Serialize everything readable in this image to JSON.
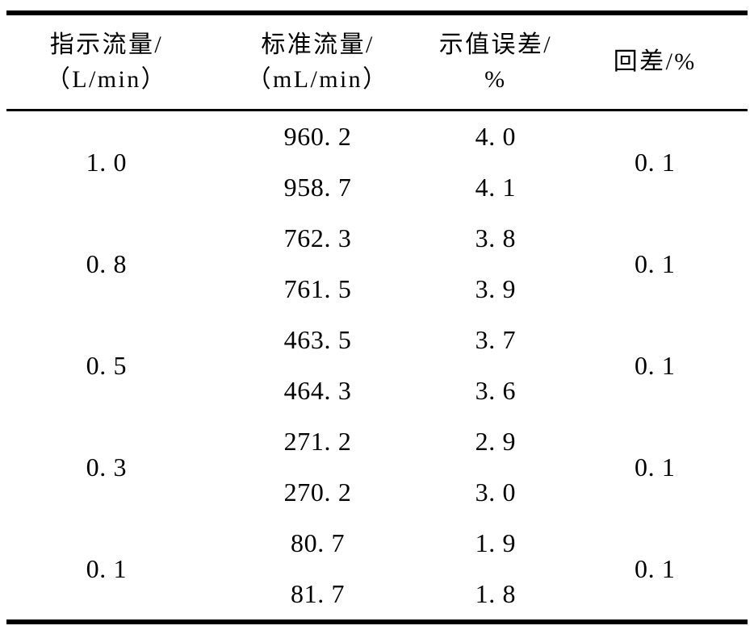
{
  "page": {
    "background": "#ffffff",
    "text_color": "#000000"
  },
  "table": {
    "columns": [
      {
        "title": "指示流量/",
        "unit": "（L/min）"
      },
      {
        "title": "标准流量/",
        "unit": "（mL/min）"
      },
      {
        "title": "示值误差/",
        "unit": "%"
      },
      {
        "title": "回差/%",
        "unit": ""
      }
    ],
    "groups": [
      {
        "indicated": "1. 0",
        "hysteresis": "0. 1",
        "readings": [
          {
            "standard": "960. 2",
            "error": "4. 0"
          },
          {
            "standard": "958. 7",
            "error": "4. 1"
          }
        ]
      },
      {
        "indicated": "0. 8",
        "hysteresis": "0. 1",
        "readings": [
          {
            "standard": "762. 3",
            "error": "3. 8"
          },
          {
            "standard": "761. 5",
            "error": "3. 9"
          }
        ]
      },
      {
        "indicated": "0. 5",
        "hysteresis": "0. 1",
        "readings": [
          {
            "standard": "463. 5",
            "error": "3. 7"
          },
          {
            "standard": "464. 3",
            "error": "3. 6"
          }
        ]
      },
      {
        "indicated": "0. 3",
        "hysteresis": "0. 1",
        "readings": [
          {
            "standard": "271. 2",
            "error": "2. 9"
          },
          {
            "standard": "270. 2",
            "error": "3. 0"
          }
        ]
      },
      {
        "indicated": "0. 1",
        "hysteresis": "0. 1",
        "readings": [
          {
            "standard": "80. 7",
            "error": "1. 9"
          },
          {
            "standard": "81. 7",
            "error": "1. 8"
          }
        ]
      }
    ]
  }
}
